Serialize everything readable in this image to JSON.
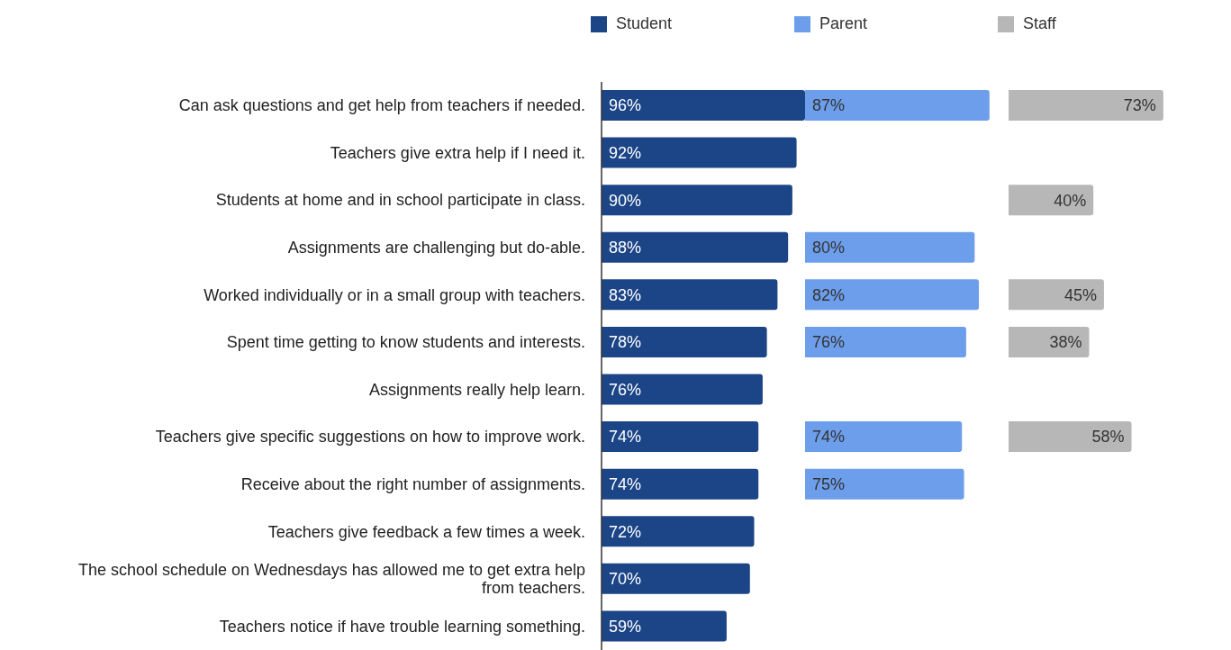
{
  "chart_data": [
    {
      "type": "bar",
      "orientation": "horizontal",
      "categories": [
        "Can ask questions and get help from teachers if needed.",
        "Teachers give extra help if I need it.",
        "Students at home and in school participate in class.",
        "Assignments are challenging but do-able.",
        "Worked individually or in a small group with teachers.",
        "Spent time getting to know students and interests.",
        "Assignments really help learn.",
        "Teachers give specific suggestions on how to improve work.",
        "Receive about the right number of assignments.",
        "Teachers give feedback a few times a week.",
        "The school schedule on Wednesdays has allowed me to get extra help from teachers.",
        "Teachers notice if have trouble learning something."
      ],
      "legend": "top left",
      "tick_labels": "y",
      "series": [
        {
          "name": "Student",
          "color": "#1c4587",
          "values": [
            96,
            92,
            90,
            88,
            83,
            78,
            76,
            74,
            74,
            72,
            70,
            59
          ],
          "value_labels": [
            "96%",
            "92%",
            "90%",
            "88%",
            "83%",
            "78%",
            "76%",
            "74%",
            "74%",
            "72%",
            "70%",
            "59%"
          ]
        }
      ]
    },
    {
      "type": "bar",
      "orientation": "horizontal",
      "legend": "top left",
      "tick_labels": false,
      "series": [
        {
          "name": "Parent",
          "color": "#6d9eeb",
          "values": [
            87,
            null,
            null,
            80,
            82,
            76,
            null,
            74,
            75,
            null,
            null,
            null
          ],
          "value_labels": [
            "87%",
            null,
            null,
            "80%",
            "82%",
            "76%",
            null,
            "74%",
            "75%",
            null,
            null,
            null
          ]
        }
      ]
    },
    {
      "type": "bar",
      "orientation": "horizontal",
      "legend": "top left",
      "tick_labels": false,
      "series": [
        {
          "name": "Staff",
          "color": "#b7b7b7",
          "values": [
            73,
            null,
            40,
            null,
            45,
            38,
            null,
            58,
            null,
            null,
            null,
            null
          ],
          "value_labels": [
            "73%",
            null,
            "40%",
            null,
            "45%",
            "38%",
            null,
            "58%",
            null,
            null,
            null,
            null
          ]
        }
      ]
    }
  ]
}
